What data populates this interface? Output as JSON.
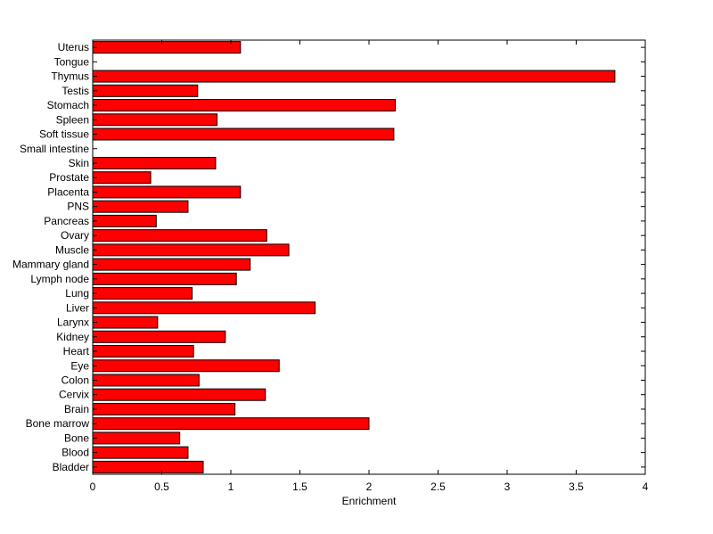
{
  "chart_data": {
    "type": "bar",
    "orientation": "horizontal",
    "title": "",
    "xlabel": "Enrichment",
    "ylabel": "",
    "xlim": [
      0,
      4
    ],
    "xticks": [
      "0",
      "0.5",
      "1",
      "1.5",
      "2",
      "2.5",
      "3",
      "3.5",
      "4"
    ],
    "xtick_values": [
      0,
      0.5,
      1,
      1.5,
      2,
      2.5,
      3,
      3.5,
      4
    ],
    "grid": false,
    "legend": "none",
    "bar_color": "#ff0000",
    "categories": [
      "Uterus",
      "Tongue",
      "Thymus",
      "Testis",
      "Stomach",
      "Spleen",
      "Soft tissue",
      "Small intestine",
      "Skin",
      "Prostate",
      "Placenta",
      "PNS",
      "Pancreas",
      "Ovary",
      "Muscle",
      "Mammary gland",
      "Lymph node",
      "Lung",
      "Liver",
      "Larynx",
      "Kidney",
      "Heart",
      "Eye",
      "Colon",
      "Cervix",
      "Brain",
      "Bone marrow",
      "Bone",
      "Blood",
      "Bladder"
    ],
    "values": [
      1.07,
      0,
      3.78,
      0.76,
      2.19,
      0.9,
      2.18,
      0,
      0.89,
      0.42,
      1.07,
      0.69,
      0.46,
      1.26,
      1.42,
      1.14,
      1.04,
      0.72,
      1.61,
      0.47,
      0.96,
      0.73,
      1.35,
      0.77,
      1.25,
      1.03,
      2.0,
      0.63,
      0.69,
      0.8
    ]
  }
}
